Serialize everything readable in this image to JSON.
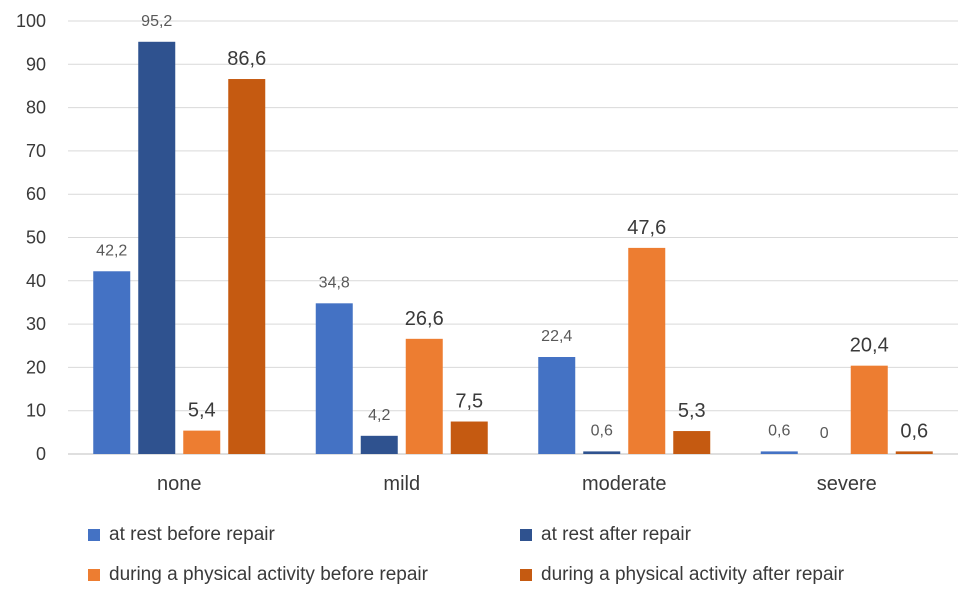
{
  "chart_data": {
    "type": "bar",
    "title": "",
    "xlabel": "",
    "ylabel": "",
    "ylim": [
      0,
      100
    ],
    "yticks": [
      0,
      10,
      20,
      30,
      40,
      50,
      60,
      70,
      80,
      90,
      100
    ],
    "grid": true,
    "legend_position": "bottom",
    "categories": [
      "none",
      "mild",
      "moderate",
      "severe"
    ],
    "series": [
      {
        "name": "at rest before repair",
        "color": "#4472C4",
        "values": [
          42.2,
          34.8,
          22.4,
          0.6
        ],
        "labels": [
          "42,2",
          "34,8",
          "22,4",
          "0,6"
        ]
      },
      {
        "name": "at rest after repair",
        "color": "#2F528F",
        "values": [
          95.2,
          4.2,
          0.6,
          0
        ],
        "labels": [
          "95,2",
          "4,2",
          "0,6",
          "0"
        ]
      },
      {
        "name": "during a physical activity before repair",
        "color": "#ED7D31",
        "values": [
          5.4,
          26.6,
          47.6,
          20.4
        ],
        "labels": [
          "5,4",
          "26,6",
          "47,6",
          "20,4"
        ]
      },
      {
        "name": "during a physical activity after repair",
        "color": "#C55A11",
        "values": [
          86.6,
          7.5,
          5.3,
          0.6
        ],
        "labels": [
          "86,6",
          "7,5",
          "5,3",
          "0,6"
        ]
      }
    ]
  }
}
